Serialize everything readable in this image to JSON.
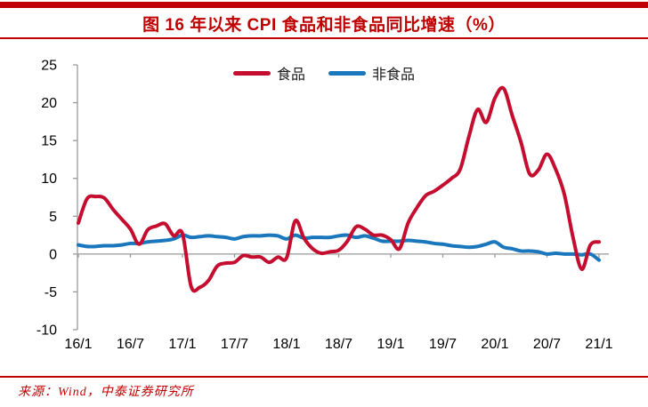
{
  "header": {
    "title": "图 16 年以来 CPI 食品和非食品同比增速（%）",
    "accent_color": "#C00000"
  },
  "footer": {
    "source": "来源：Wind，中泰证券研究所"
  },
  "chart_data": {
    "type": "line",
    "title": "图 16 年以来 CPI 食品和非食品同比增速（%）",
    "unit": "%",
    "ylim": [
      -10,
      25
    ],
    "y_ticks": [
      25,
      20,
      15,
      10,
      5,
      0,
      -5,
      -10
    ],
    "x_tick_labels": [
      "16/1",
      "16/7",
      "17/1",
      "17/7",
      "18/1",
      "18/7",
      "19/1",
      "19/7",
      "20/1",
      "20/7",
      "21/1"
    ],
    "grid": false,
    "legend_position": "top-center",
    "axis_color": "#9A9A9A",
    "label_color": "#000000",
    "x": [
      "16/1",
      "16/2",
      "16/3",
      "16/4",
      "16/5",
      "16/6",
      "16/7",
      "16/8",
      "16/9",
      "16/10",
      "16/11",
      "16/12",
      "17/1",
      "17/2",
      "17/3",
      "17/4",
      "17/5",
      "17/6",
      "17/7",
      "17/8",
      "17/9",
      "17/10",
      "17/11",
      "17/12",
      "18/1",
      "18/2",
      "18/3",
      "18/4",
      "18/5",
      "18/6",
      "18/7",
      "18/8",
      "18/9",
      "18/10",
      "18/11",
      "18/12",
      "19/1",
      "19/2",
      "19/3",
      "19/4",
      "19/5",
      "19/6",
      "19/7",
      "19/8",
      "19/9",
      "19/10",
      "19/11",
      "19/12",
      "20/1",
      "20/2",
      "20/3",
      "20/4",
      "20/5",
      "20/6",
      "20/7",
      "20/8",
      "20/9",
      "20/10",
      "20/11",
      "20/12",
      "21/1"
    ],
    "series": [
      {
        "name": "食品",
        "color": "#C50D30",
        "values": [
          4.1,
          7.3,
          7.6,
          7.4,
          5.9,
          4.6,
          3.3,
          1.3,
          3.2,
          3.7,
          4.0,
          2.4,
          2.7,
          -4.3,
          -4.4,
          -3.5,
          -1.6,
          -1.2,
          -1.1,
          -0.2,
          -0.4,
          -0.4,
          -1.1,
          -0.4,
          -0.5,
          4.4,
          2.1,
          0.7,
          0.1,
          0.3,
          0.5,
          1.7,
          3.6,
          3.3,
          2.5,
          2.5,
          1.9,
          0.7,
          4.1,
          6.1,
          7.7,
          8.3,
          9.1,
          10.0,
          11.2,
          15.5,
          19.1,
          17.4,
          20.6,
          21.9,
          18.3,
          14.8,
          10.6,
          11.1,
          13.2,
          11.2,
          7.9,
          2.2,
          -2.0,
          1.2,
          1.6
        ]
      },
      {
        "name": "非食品",
        "color": "#1B77BC",
        "values": [
          1.2,
          1.0,
          1.0,
          1.1,
          1.1,
          1.2,
          1.4,
          1.4,
          1.6,
          1.7,
          1.8,
          2.0,
          2.5,
          2.2,
          2.3,
          2.4,
          2.3,
          2.2,
          2.0,
          2.3,
          2.4,
          2.4,
          2.5,
          2.4,
          2.0,
          2.5,
          2.1,
          2.2,
          2.2,
          2.2,
          2.4,
          2.5,
          2.2,
          2.4,
          2.1,
          1.7,
          1.7,
          1.7,
          1.8,
          1.7,
          1.6,
          1.4,
          1.3,
          1.1,
          1.0,
          0.9,
          1.0,
          1.3,
          1.6,
          0.9,
          0.7,
          0.4,
          0.4,
          0.3,
          0.0,
          0.1,
          0.0,
          0.0,
          -0.1,
          0.0,
          -0.8
        ]
      }
    ]
  }
}
